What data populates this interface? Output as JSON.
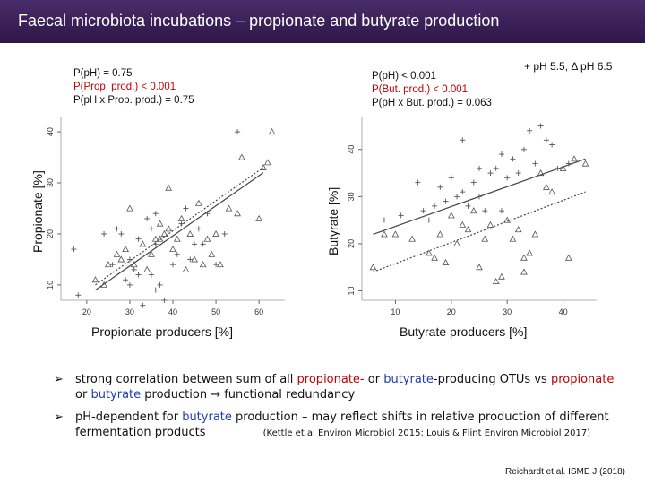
{
  "title": "Faecal microbiota incubations – propionate and butyrate production",
  "legend_text": "+ pH 5.5, Δ pH 6.5",
  "chart_data": [
    {
      "type": "scatter",
      "xlabel": "Propionate producers [%]",
      "ylabel": "Propionate [%]",
      "xlim": [
        14,
        66
      ],
      "ylim": [
        7,
        43
      ],
      "xticks": [
        20,
        30,
        40,
        50,
        60
      ],
      "yticks": [
        10,
        20,
        30,
        40
      ],
      "stats": [
        "P(pH) = 0.75",
        "P(Prop. prod.) < 0.001",
        "P(pH x Prop. prod.) = 0.75"
      ],
      "stats_colors": [
        "#111111",
        "#c00000",
        "#111111"
      ],
      "series": [
        {
          "name": "pH 5.5",
          "marker": "+",
          "points": [
            [
              17,
              17
            ],
            [
              18,
              8
            ],
            [
              24,
              20
            ],
            [
              26,
              14
            ],
            [
              27,
              21
            ],
            [
              28,
              20
            ],
            [
              29,
              11
            ],
            [
              30,
              10
            ],
            [
              31,
              13
            ],
            [
              32,
              12
            ],
            [
              32,
              19
            ],
            [
              33,
              6
            ],
            [
              34,
              23
            ],
            [
              35,
              21
            ],
            [
              35,
              12
            ],
            [
              36,
              24
            ],
            [
              36,
              18
            ],
            [
              37,
              10
            ],
            [
              38,
              7
            ],
            [
              40,
              14
            ],
            [
              41,
              16
            ],
            [
              42,
              22
            ],
            [
              43,
              25
            ],
            [
              44,
              15
            ],
            [
              45,
              18
            ],
            [
              46,
              21
            ],
            [
              47,
              18
            ],
            [
              48,
              24
            ],
            [
              50,
              14
            ],
            [
              52,
              20
            ],
            [
              55,
              40
            ],
            [
              36,
              9
            ],
            [
              30,
              15
            ]
          ]
        },
        {
          "name": "pH 6.5",
          "marker": "Δ",
          "points": [
            [
              22,
              11
            ],
            [
              24,
              10
            ],
            [
              25,
              14
            ],
            [
              27,
              16
            ],
            [
              28,
              15
            ],
            [
              29,
              17
            ],
            [
              30,
              25
            ],
            [
              31,
              14
            ],
            [
              33,
              18
            ],
            [
              34,
              13
            ],
            [
              35,
              16
            ],
            [
              36,
              19
            ],
            [
              37,
              22
            ],
            [
              38,
              20
            ],
            [
              39,
              21
            ],
            [
              40,
              17
            ],
            [
              41,
              19
            ],
            [
              42,
              23
            ],
            [
              43,
              13
            ],
            [
              44,
              20
            ],
            [
              45,
              15
            ],
            [
              46,
              26
            ],
            [
              47,
              14
            ],
            [
              48,
              19
            ],
            [
              49,
              16
            ],
            [
              50,
              20
            ],
            [
              51,
              14
            ],
            [
              53,
              25
            ],
            [
              55,
              24
            ],
            [
              56,
              35
            ],
            [
              60,
              23
            ],
            [
              61,
              33
            ],
            [
              63,
              40
            ],
            [
              62,
              34
            ],
            [
              39,
              29
            ],
            [
              37,
              19
            ]
          ]
        }
      ],
      "fit_lines": [
        {
          "name": "pH 5.5",
          "style": "solid",
          "from": [
            22,
            9
          ],
          "to": [
            61,
            32
          ]
        },
        {
          "name": "pH 6.5",
          "style": "dotted",
          "from": [
            22,
            10
          ],
          "to": [
            61,
            33
          ]
        }
      ]
    },
    {
      "type": "scatter",
      "xlabel": "Butyrate producers [%]",
      "ylabel": "Butyrate [%]",
      "xlim": [
        4,
        46
      ],
      "ylim": [
        8,
        47
      ],
      "xticks": [
        10,
        20,
        30,
        40
      ],
      "yticks": [
        10,
        20,
        30,
        40
      ],
      "stats": [
        "P(pH) < 0.001",
        "P(But. prod.) < 0.001",
        "P(pH x But. prod.) = 0.063"
      ],
      "stats_colors": [
        "#111111",
        "#c00000",
        "#111111"
      ],
      "series": [
        {
          "name": "pH 5.5",
          "marker": "+",
          "points": [
            [
              8,
              25
            ],
            [
              11,
              26
            ],
            [
              14,
              33
            ],
            [
              15,
              27
            ],
            [
              16,
              25
            ],
            [
              17,
              28
            ],
            [
              18,
              32
            ],
            [
              19,
              29
            ],
            [
              20,
              34
            ],
            [
              21,
              30
            ],
            [
              22,
              31
            ],
            [
              23,
              28
            ],
            [
              24,
              33
            ],
            [
              25,
              30
            ],
            [
              25,
              36
            ],
            [
              26,
              27
            ],
            [
              27,
              35
            ],
            [
              28,
              36
            ],
            [
              29,
              39
            ],
            [
              30,
              34
            ],
            [
              31,
              38
            ],
            [
              32,
              35
            ],
            [
              33,
              40
            ],
            [
              34,
              44
            ],
            [
              35,
              37
            ],
            [
              36,
              45
            ],
            [
              37,
              42
            ],
            [
              38,
              41
            ],
            [
              39,
              36
            ],
            [
              41,
              37
            ],
            [
              22,
              42
            ],
            [
              29,
              27
            ]
          ]
        },
        {
          "name": "pH 6.5",
          "marker": "Δ",
          "points": [
            [
              6,
              15
            ],
            [
              8,
              22
            ],
            [
              10,
              22
            ],
            [
              13,
              21
            ],
            [
              16,
              18
            ],
            [
              17,
              17
            ],
            [
              18,
              22
            ],
            [
              19,
              16
            ],
            [
              20,
              26
            ],
            [
              21,
              20
            ],
            [
              22,
              24
            ],
            [
              23,
              23
            ],
            [
              24,
              27
            ],
            [
              25,
              15
            ],
            [
              26,
              21
            ],
            [
              27,
              24
            ],
            [
              28,
              12
            ],
            [
              29,
              13
            ],
            [
              30,
              25
            ],
            [
              31,
              21
            ],
            [
              32,
              23
            ],
            [
              33,
              14
            ],
            [
              33,
              17
            ],
            [
              34,
              18
            ],
            [
              35,
              22
            ],
            [
              36,
              35
            ],
            [
              37,
              32
            ],
            [
              38,
              31
            ],
            [
              40,
              36
            ],
            [
              41,
              17
            ],
            [
              42,
              38
            ],
            [
              44,
              37
            ]
          ]
        }
      ],
      "fit_lines": [
        {
          "name": "pH 6.5",
          "style": "solid",
          "from": [
            6,
            22
          ],
          "to": [
            44,
            38
          ]
        },
        {
          "name": "pH 5.5",
          "style": "dotted",
          "from": [
            6,
            14
          ],
          "to": [
            44,
            31
          ]
        }
      ]
    }
  ],
  "bullets": [
    {
      "segments": [
        {
          "text": "strong correlation between sum of all ",
          "color": ""
        },
        {
          "text": "propionate-",
          "color": "red"
        },
        {
          "text": " or ",
          "color": ""
        },
        {
          "text": "butyrate",
          "color": "blue"
        },
        {
          "text": "-producing OTUs vs ",
          "color": ""
        },
        {
          "text": "propionate",
          "color": "red"
        },
        {
          "text": " or ",
          "color": ""
        },
        {
          "text": "butyrate",
          "color": "blue"
        },
        {
          "text": " production → functional redundancy",
          "color": ""
        }
      ]
    },
    {
      "segments": [
        {
          "text": "pH-dependent for ",
          "color": ""
        },
        {
          "text": "butyrate",
          "color": "blue"
        },
        {
          "text": " production – may reflect shifts in relative production of different fermentation products",
          "color": ""
        }
      ],
      "refs": "(Kettle et al Environ Microbiol 2015; Louis & Flint Environ Microbiol 2017)"
    }
  ],
  "citation": "Reichardt et al. ISME J (2018)"
}
